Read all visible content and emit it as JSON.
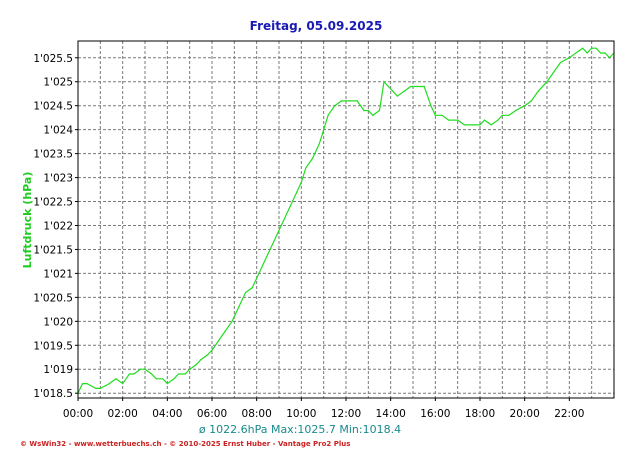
{
  "colors": {
    "background": "#ffffff",
    "plot_bg": "#ffffff",
    "frame": "#000000",
    "grid": "#7a7a7a",
    "title": "#1a1ab4",
    "series": "#22dd22",
    "ylabel": "#22cc22",
    "stats": "#1a8a8a",
    "footer": "#cc2222"
  },
  "chart_data": {
    "type": "line",
    "title": "Freitag, 05.09.2025",
    "ylabel": "Luftdruck  (hPa)",
    "xlabel": "",
    "xlim": [
      0,
      24
    ],
    "ylim": [
      1018.4,
      1025.85
    ],
    "grid": true,
    "xticks": [
      {
        "value": 0,
        "label": "00:00"
      },
      {
        "value": 2,
        "label": "02:00"
      },
      {
        "value": 4,
        "label": "04:00"
      },
      {
        "value": 6,
        "label": "06:00"
      },
      {
        "value": 8,
        "label": "08:00"
      },
      {
        "value": 10,
        "label": "10:00"
      },
      {
        "value": 12,
        "label": "12:00"
      },
      {
        "value": 14,
        "label": "14:00"
      },
      {
        "value": 16,
        "label": "16:00"
      },
      {
        "value": 18,
        "label": "18:00"
      },
      {
        "value": 20,
        "label": "20:00"
      },
      {
        "value": 22,
        "label": "22:00"
      }
    ],
    "yticks": [
      {
        "value": 1018.5,
        "label": "1'018.5"
      },
      {
        "value": 1019,
        "label": "1'019"
      },
      {
        "value": 1019.5,
        "label": "1'019.5"
      },
      {
        "value": 1020,
        "label": "1'020"
      },
      {
        "value": 1020.5,
        "label": "1'020.5"
      },
      {
        "value": 1021,
        "label": "1'021"
      },
      {
        "value": 1021.5,
        "label": "1'021.5"
      },
      {
        "value": 1022,
        "label": "1'022"
      },
      {
        "value": 1022.5,
        "label": "1'022.5"
      },
      {
        "value": 1023,
        "label": "1'023"
      },
      {
        "value": 1023.5,
        "label": "1'023.5"
      },
      {
        "value": 1024,
        "label": "1'024"
      },
      {
        "value": 1024.5,
        "label": "1'024.5"
      },
      {
        "value": 1025,
        "label": "1'025"
      },
      {
        "value": 1025.5,
        "label": "1'025.5"
      }
    ],
    "series": [
      {
        "x": [
          0.0,
          0.2,
          0.4,
          0.8,
          1.0,
          1.4,
          1.7,
          2.0,
          2.3,
          2.5,
          2.8,
          3.0,
          3.3,
          3.5,
          3.8,
          4.0,
          4.3,
          4.5,
          4.8,
          5.0,
          5.3,
          5.5,
          5.8,
          6.0,
          6.3,
          6.6,
          6.9,
          7.2,
          7.5,
          7.8,
          8.0,
          8.3,
          8.6,
          8.9,
          9.2,
          9.5,
          9.8,
          10.0,
          10.2,
          10.5,
          10.8,
          11.0,
          11.2,
          11.5,
          11.8,
          12.0,
          12.2,
          12.5,
          12.8,
          13.0,
          13.2,
          13.5,
          13.7,
          13.9,
          14.1,
          14.3,
          14.6,
          14.9,
          15.2,
          15.5,
          15.8,
          16.0,
          16.3,
          16.6,
          17.0,
          17.3,
          17.7,
          18.0,
          18.2,
          18.5,
          18.8,
          19.0,
          19.3,
          19.6,
          20.0,
          20.3,
          20.6,
          21.0,
          21.3,
          21.6,
          22.0,
          22.3,
          22.6,
          22.8,
          23.0,
          23.2,
          23.4,
          23.6,
          23.8,
          24.0
        ],
        "values": [
          1018.5,
          1018.7,
          1018.7,
          1018.6,
          1018.6,
          1018.7,
          1018.8,
          1018.7,
          1018.9,
          1018.9,
          1019.0,
          1019.0,
          1018.9,
          1018.8,
          1018.8,
          1018.7,
          1018.8,
          1018.9,
          1018.9,
          1019.0,
          1019.1,
          1019.2,
          1019.3,
          1019.4,
          1019.6,
          1019.8,
          1020.0,
          1020.3,
          1020.6,
          1020.7,
          1020.9,
          1021.2,
          1021.5,
          1021.8,
          1022.1,
          1022.4,
          1022.7,
          1022.9,
          1023.2,
          1023.4,
          1023.7,
          1024.0,
          1024.3,
          1024.5,
          1024.6,
          1024.6,
          1024.6,
          1024.6,
          1024.4,
          1024.4,
          1024.3,
          1024.4,
          1025.0,
          1024.9,
          1024.8,
          1024.7,
          1024.8,
          1024.9,
          1024.9,
          1024.9,
          1024.5,
          1024.3,
          1024.3,
          1024.2,
          1024.2,
          1024.1,
          1024.1,
          1024.1,
          1024.2,
          1024.1,
          1024.2,
          1024.3,
          1024.3,
          1024.4,
          1024.5,
          1024.6,
          1024.8,
          1025.0,
          1025.2,
          1025.4,
          1025.5,
          1025.6,
          1025.7,
          1025.6,
          1025.7,
          1025.7,
          1025.6,
          1025.6,
          1025.5,
          1025.6
        ]
      }
    ]
  },
  "stats_text": "ø 1022.6hPa  Max:1025.7  Min:1018.4",
  "footer_text": "© WsWin32 - www.wetterbuechs.ch - © 2010-2025 Ernst Huber - Vantage Pro2 Plus"
}
